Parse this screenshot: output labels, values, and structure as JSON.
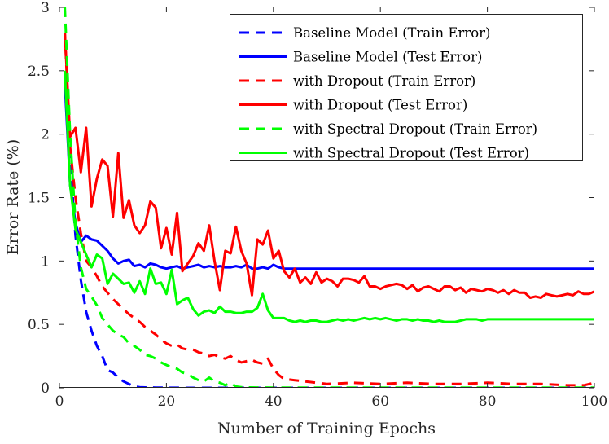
{
  "chart_data": {
    "type": "line",
    "title": "",
    "xlabel": "Number of Training Epochs",
    "ylabel": "Error Rate (%)",
    "xlim": [
      0,
      100
    ],
    "ylim": [
      0,
      3
    ],
    "xticks": [
      0,
      20,
      40,
      60,
      80,
      100
    ],
    "yticks": [
      0,
      0.5,
      1,
      1.5,
      2,
      2.5,
      3
    ],
    "xtick_labels": [
      "0",
      "20",
      "40",
      "60",
      "80",
      "100"
    ],
    "ytick_labels": [
      "0",
      "0.5",
      "1",
      "1.5",
      "2",
      "2.5",
      "3"
    ],
    "grid": false,
    "legend_position": "top-right",
    "series": [
      {
        "name": "Baseline Model (Train Error)",
        "color": "#0000ff",
        "style": "dashed",
        "x": [
          1,
          2,
          3,
          4,
          5,
          6,
          7,
          8,
          9,
          10,
          11,
          12,
          13,
          14,
          15,
          16,
          18,
          20,
          25,
          30,
          35,
          40,
          50,
          60,
          70,
          80,
          90,
          100
        ],
        "y": [
          2.4,
          1.8,
          1.2,
          0.85,
          0.6,
          0.45,
          0.33,
          0.25,
          0.14,
          0.12,
          0.08,
          0.05,
          0.03,
          0.01,
          0.005,
          0.003,
          0.002,
          0.001,
          0,
          0,
          0,
          0,
          0,
          0,
          0,
          0,
          0,
          0
        ]
      },
      {
        "name": "Baseline Model (Test Error)",
        "color": "#0000ff",
        "style": "solid",
        "x": [
          1,
          2,
          3,
          4,
          5,
          6,
          7,
          8,
          9,
          10,
          11,
          12,
          13,
          14,
          15,
          16,
          17,
          18,
          19,
          20,
          21,
          22,
          23,
          24,
          25,
          26,
          27,
          28,
          29,
          30,
          31,
          32,
          33,
          34,
          35,
          36,
          37,
          38,
          39,
          40,
          41,
          42,
          43,
          44,
          45,
          50,
          60,
          70,
          80,
          90,
          100
        ],
        "y": [
          2.4,
          1.6,
          1.3,
          1.15,
          1.2,
          1.17,
          1.16,
          1.12,
          1.08,
          1.02,
          0.98,
          1.0,
          1.01,
          0.96,
          0.97,
          0.95,
          0.98,
          0.97,
          0.95,
          0.94,
          0.95,
          0.96,
          0.94,
          0.95,
          0.96,
          0.97,
          0.95,
          0.96,
          0.95,
          0.96,
          0.95,
          0.95,
          0.96,
          0.95,
          0.97,
          0.94,
          0.94,
          0.95,
          0.94,
          0.97,
          0.95,
          0.94,
          0.94,
          0.94,
          0.94,
          0.94,
          0.94,
          0.94,
          0.94,
          0.94,
          0.94
        ]
      },
      {
        "name": "with Dropout (Train Error)",
        "color": "#ff0000",
        "style": "dashed",
        "x": [
          1,
          2,
          3,
          4,
          5,
          6,
          7,
          8,
          9,
          10,
          11,
          12,
          13,
          14,
          15,
          16,
          17,
          18,
          19,
          20,
          21,
          22,
          23,
          24,
          25,
          26,
          27,
          28,
          29,
          30,
          31,
          32,
          33,
          34,
          35,
          36,
          37,
          38,
          39,
          40,
          41,
          42,
          44,
          46,
          48,
          50,
          55,
          60,
          65,
          70,
          75,
          80,
          85,
          90,
          95,
          98,
          100
        ],
        "y": [
          2.8,
          1.9,
          1.5,
          1.22,
          1.0,
          0.95,
          0.88,
          0.8,
          0.75,
          0.7,
          0.66,
          0.62,
          0.58,
          0.55,
          0.52,
          0.48,
          0.45,
          0.42,
          0.38,
          0.35,
          0.33,
          0.34,
          0.31,
          0.3,
          0.3,
          0.28,
          0.27,
          0.25,
          0.26,
          0.24,
          0.23,
          0.25,
          0.22,
          0.2,
          0.21,
          0.22,
          0.2,
          0.19,
          0.23,
          0.15,
          0.1,
          0.07,
          0.06,
          0.05,
          0.04,
          0.03,
          0.04,
          0.03,
          0.04,
          0.03,
          0.03,
          0.04,
          0.03,
          0.03,
          0.02,
          0.02,
          0.04
        ]
      },
      {
        "name": "with Dropout (Test Error)",
        "color": "#ff0000",
        "style": "solid",
        "x": [
          1,
          2,
          3,
          4,
          5,
          6,
          7,
          8,
          9,
          10,
          11,
          12,
          13,
          14,
          15,
          16,
          17,
          18,
          19,
          20,
          21,
          22,
          23,
          24,
          25,
          26,
          27,
          28,
          29,
          30,
          31,
          32,
          33,
          34,
          35,
          36,
          37,
          38,
          39,
          40,
          41,
          42,
          43,
          44,
          45,
          46,
          47,
          48,
          49,
          50,
          51,
          52,
          53,
          54,
          55,
          56,
          57,
          58,
          59,
          60,
          61,
          62,
          63,
          64,
          65,
          66,
          67,
          68,
          69,
          70,
          71,
          72,
          73,
          74,
          75,
          76,
          77,
          78,
          79,
          80,
          81,
          82,
          83,
          84,
          85,
          86,
          87,
          88,
          89,
          90,
          91,
          92,
          93,
          94,
          95,
          96,
          97,
          98,
          99,
          100
        ],
        "y": [
          2.8,
          1.98,
          2.05,
          1.7,
          2.05,
          1.43,
          1.65,
          1.8,
          1.75,
          1.35,
          1.85,
          1.34,
          1.48,
          1.28,
          1.22,
          1.28,
          1.47,
          1.42,
          1.1,
          1.26,
          1.05,
          1.38,
          0.92,
          0.98,
          1.04,
          1.14,
          1.08,
          1.28,
          1.0,
          0.77,
          1.08,
          1.06,
          1.27,
          1.08,
          0.98,
          0.73,
          1.17,
          1.13,
          1.24,
          1.02,
          1.08,
          0.92,
          0.87,
          0.94,
          0.83,
          0.87,
          0.82,
          0.91,
          0.83,
          0.86,
          0.84,
          0.8,
          0.86,
          0.86,
          0.85,
          0.83,
          0.88,
          0.8,
          0.8,
          0.78,
          0.8,
          0.81,
          0.82,
          0.81,
          0.78,
          0.81,
          0.76,
          0.79,
          0.8,
          0.78,
          0.76,
          0.8,
          0.8,
          0.77,
          0.79,
          0.75,
          0.78,
          0.77,
          0.76,
          0.78,
          0.77,
          0.75,
          0.77,
          0.74,
          0.77,
          0.75,
          0.75,
          0.71,
          0.72,
          0.71,
          0.74,
          0.73,
          0.72,
          0.73,
          0.74,
          0.73,
          0.76,
          0.74,
          0.74,
          0.76
        ]
      },
      {
        "name": "with Spectral Dropout (Train Error)",
        "color": "#00ff00",
        "style": "dashed",
        "x": [
          1,
          2,
          3,
          4,
          5,
          6,
          7,
          8,
          9,
          10,
          11,
          12,
          13,
          14,
          15,
          16,
          17,
          18,
          19,
          20,
          21,
          22,
          23,
          24,
          25,
          26,
          27,
          28,
          29,
          30,
          31,
          32,
          33,
          34,
          35,
          40,
          50,
          60,
          70,
          80,
          90,
          100
        ],
        "y": [
          3.0,
          2.0,
          1.3,
          0.95,
          0.78,
          0.72,
          0.65,
          0.55,
          0.5,
          0.45,
          0.42,
          0.4,
          0.35,
          0.33,
          0.3,
          0.26,
          0.25,
          0.23,
          0.2,
          0.18,
          0.16,
          0.15,
          0.12,
          0.11,
          0.08,
          0.06,
          0.05,
          0.08,
          0.05,
          0.04,
          0.02,
          0.04,
          0.01,
          0.005,
          0.003,
          0.002,
          0.001,
          0.001,
          0.001,
          0.001,
          0.001,
          0.002
        ]
      },
      {
        "name": "with Spectral Dropout (Test Error)",
        "color": "#00ff00",
        "style": "solid",
        "x": [
          1,
          2,
          3,
          4,
          5,
          6,
          7,
          8,
          9,
          10,
          11,
          12,
          13,
          14,
          15,
          16,
          17,
          18,
          19,
          20,
          21,
          22,
          23,
          24,
          25,
          26,
          27,
          28,
          29,
          30,
          31,
          32,
          33,
          34,
          35,
          36,
          37,
          38,
          39,
          40,
          41,
          42,
          43,
          44,
          45,
          46,
          47,
          48,
          49,
          50,
          51,
          52,
          53,
          54,
          55,
          56,
          57,
          58,
          59,
          60,
          61,
          62,
          63,
          64,
          65,
          66,
          67,
          68,
          69,
          70,
          71,
          72,
          73,
          74,
          75,
          76,
          77,
          78,
          79,
          80,
          81,
          82,
          83,
          84,
          85,
          86,
          87,
          88,
          89,
          90,
          91,
          92,
          93,
          94,
          95,
          96,
          97,
          98,
          99,
          100
        ],
        "y": [
          2.5,
          1.6,
          1.25,
          1.15,
          1.05,
          0.95,
          1.05,
          1.02,
          0.82,
          0.9,
          0.86,
          0.82,
          0.83,
          0.75,
          0.84,
          0.74,
          0.94,
          0.82,
          0.83,
          0.74,
          0.93,
          0.66,
          0.69,
          0.71,
          0.62,
          0.57,
          0.6,
          0.61,
          0.59,
          0.64,
          0.6,
          0.6,
          0.59,
          0.59,
          0.6,
          0.6,
          0.63,
          0.74,
          0.61,
          0.55,
          0.55,
          0.55,
          0.53,
          0.52,
          0.53,
          0.52,
          0.53,
          0.53,
          0.52,
          0.52,
          0.53,
          0.54,
          0.53,
          0.54,
          0.53,
          0.54,
          0.55,
          0.54,
          0.55,
          0.54,
          0.55,
          0.54,
          0.53,
          0.54,
          0.54,
          0.53,
          0.54,
          0.53,
          0.53,
          0.52,
          0.53,
          0.52,
          0.52,
          0.52,
          0.53,
          0.54,
          0.54,
          0.54,
          0.53,
          0.54,
          0.54,
          0.54,
          0.54,
          0.54,
          0.54,
          0.54,
          0.54,
          0.54,
          0.54,
          0.54,
          0.54,
          0.54,
          0.54,
          0.54,
          0.54,
          0.54,
          0.54,
          0.54,
          0.54,
          0.54
        ]
      }
    ]
  }
}
